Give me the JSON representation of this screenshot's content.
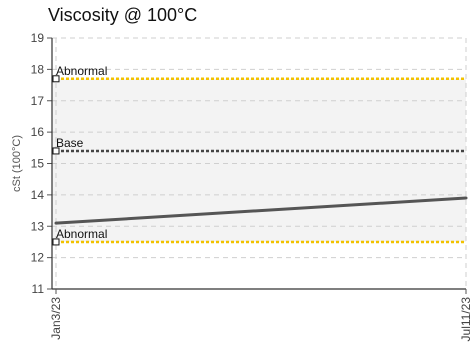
{
  "chart_data": {
    "type": "line",
    "title": "Viscosity @ 100°C",
    "ylabel": "cSt (100°C)",
    "xlabel": "",
    "ylim": [
      11,
      19
    ],
    "yticks": [
      11,
      12,
      13,
      14,
      15,
      16,
      17,
      18,
      19
    ],
    "x": [
      "Jan3/23",
      "Jul11/23"
    ],
    "grid": true,
    "shaded_band": [
      12.5,
      17.7
    ],
    "reference_lines": [
      {
        "name": "Abnormal",
        "value": 17.7,
        "color": "#f2c200",
        "style": "dotted"
      },
      {
        "name": "Base",
        "value": 15.4,
        "color": "#444444",
        "style": "dotted"
      },
      {
        "name": "Abnormal",
        "value": 12.5,
        "color": "#f2c200",
        "style": "dotted"
      }
    ],
    "series": [
      {
        "values": [
          13.1,
          13.9
        ],
        "color": "#555555"
      }
    ]
  }
}
